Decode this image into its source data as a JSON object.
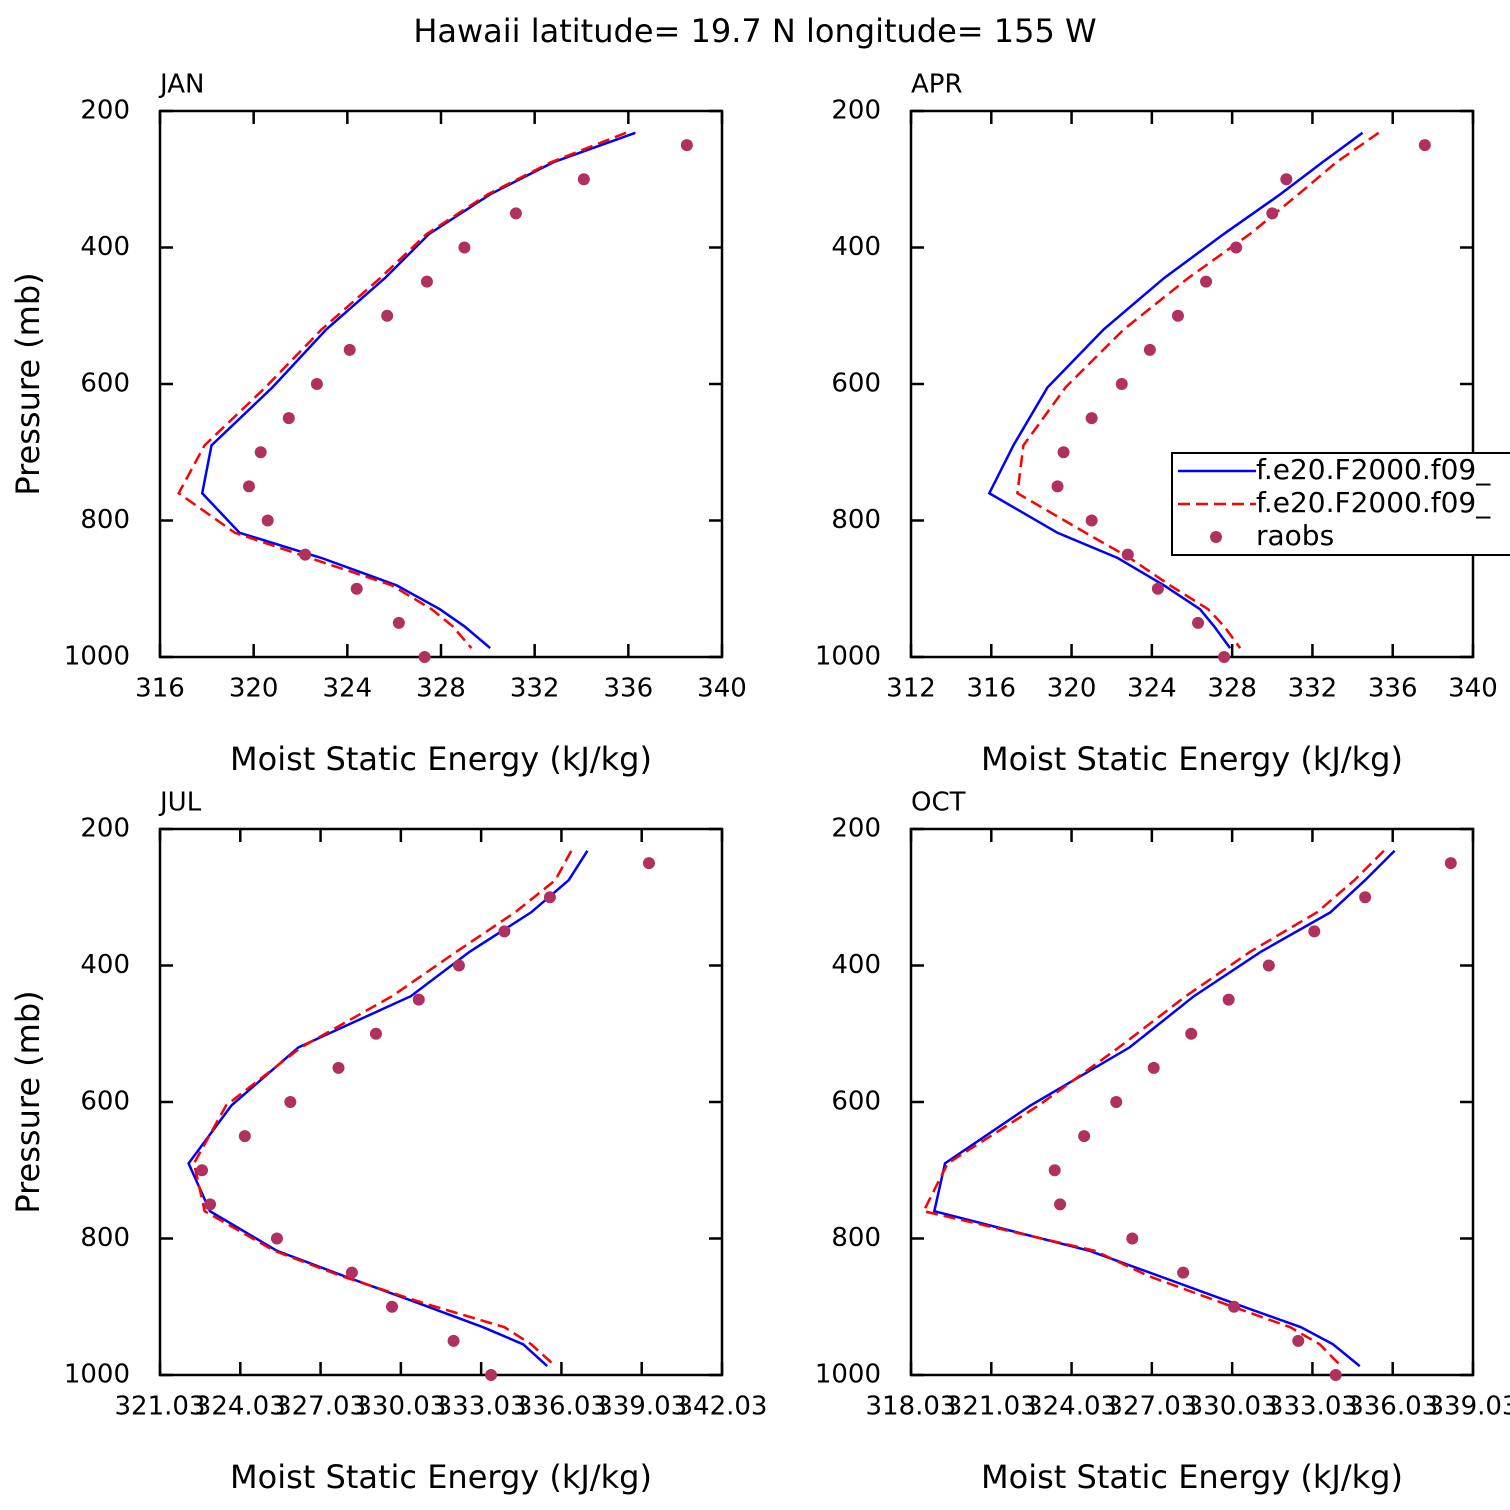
{
  "title": "Hawaii  latitude= 19.7 N longitude= 155 W",
  "chart_data": [
    {
      "type": "line",
      "subtitle": "JAN",
      "xlabel": "Moist Static Energy (kJ/kg)",
      "ylabel": "Pressure (mb)",
      "xlim": [
        316,
        340
      ],
      "xticks": [
        316,
        320,
        324,
        328,
        332,
        336,
        340
      ],
      "ylim": [
        1000,
        200
      ],
      "yticks": [
        200,
        400,
        600,
        800,
        1000
      ],
      "legend": false,
      "series": [
        {
          "name": "f.e20.F2000.f09_",
          "color": "#0000ff",
          "style": "solid",
          "y": [
            232,
            275,
            322,
            380,
            445,
            520,
            605,
            690,
            760,
            818,
            855,
            895,
            930,
            955,
            987
          ],
          "values": [
            336.3,
            332.8,
            330.1,
            327.5,
            325.6,
            323.1,
            320.8,
            318.2,
            317.8,
            319.4,
            322.9,
            326.1,
            327.95,
            329.0,
            330.1
          ]
        },
        {
          "name": "f.e20.F2000.f09_",
          "color": "#ff0000",
          "style": "dashed",
          "y": [
            232,
            275,
            322,
            380,
            445,
            520,
            605,
            690,
            760,
            818,
            855,
            895,
            930,
            955,
            987
          ],
          "values": [
            335.9,
            332.7,
            330.0,
            327.4,
            325.4,
            322.9,
            320.5,
            317.9,
            316.8,
            319.2,
            322.4,
            325.9,
            327.6,
            328.5,
            329.3
          ]
        },
        {
          "name": "raobs",
          "color": "#b03060",
          "style": "marker",
          "y": [
            250,
            300,
            350,
            400,
            450,
            500,
            550,
            600,
            650,
            700,
            750,
            800,
            850,
            900,
            950,
            1000
          ],
          "values": [
            338.5,
            334.1,
            331.2,
            329.0,
            327.4,
            325.7,
            324.1,
            322.7,
            321.5,
            320.3,
            319.8,
            320.6,
            322.2,
            324.4,
            326.2,
            327.3
          ]
        }
      ]
    },
    {
      "type": "line",
      "subtitle": "APR",
      "xlabel": "Moist Static Energy (kJ/kg)",
      "xlim": [
        312,
        340
      ],
      "xticks": [
        312,
        316,
        320,
        324,
        328,
        332,
        336,
        340
      ],
      "ylim": [
        1000,
        200
      ],
      "yticks": [
        200,
        400,
        600,
        800,
        1000
      ],
      "legend": true,
      "series": [
        {
          "name": "f.e20.F2000.f09_",
          "color": "#0000ff",
          "style": "solid",
          "y": [
            232,
            275,
            322,
            380,
            445,
            520,
            605,
            690,
            760,
            818,
            855,
            895,
            930,
            955,
            987
          ],
          "values": [
            334.5,
            332.5,
            330.4,
            327.6,
            324.6,
            321.6,
            318.8,
            317.1,
            315.9,
            319.3,
            322.3,
            324.6,
            326.4,
            327.1,
            327.9
          ]
        },
        {
          "name": "f.e20.F2000.f09_",
          "color": "#ff0000",
          "style": "dashed",
          "y": [
            232,
            275,
            322,
            380,
            445,
            520,
            605,
            690,
            760,
            818,
            855,
            895,
            930,
            955,
            987
          ],
          "values": [
            335.3,
            333.2,
            331.3,
            328.9,
            325.8,
            322.6,
            319.7,
            317.6,
            317.3,
            320.7,
            322.9,
            324.9,
            326.8,
            327.6,
            328.4
          ]
        },
        {
          "name": "raobs",
          "color": "#b03060",
          "style": "marker",
          "y": [
            250,
            300,
            350,
            400,
            450,
            500,
            550,
            600,
            650,
            700,
            750,
            800,
            850,
            900,
            950,
            1000
          ],
          "values": [
            337.6,
            330.7,
            330.0,
            328.2,
            326.7,
            325.3,
            323.9,
            322.5,
            321.0,
            319.6,
            319.3,
            321.0,
            322.8,
            324.3,
            326.3,
            327.6
          ]
        }
      ]
    },
    {
      "type": "line",
      "subtitle": "JUL",
      "xlabel": "Moist Static Energy (kJ/kg)",
      "ylabel": "Pressure (mb)",
      "xlim": [
        321.03,
        342.03
      ],
      "xticks": [
        321.03,
        324.03,
        327.03,
        330.03,
        333.03,
        336.03,
        339.03,
        342.03
      ],
      "ylim": [
        1000,
        200
      ],
      "yticks": [
        200,
        400,
        600,
        800,
        1000
      ],
      "legend": false,
      "series": [
        {
          "name": "f.e20.F2000.f09_",
          "color": "#0000ff",
          "style": "solid",
          "y": [
            232,
            275,
            322,
            380,
            445,
            520,
            605,
            690,
            760,
            818,
            855,
            895,
            930,
            955,
            987
          ],
          "values": [
            337.0,
            336.3,
            334.9,
            332.6,
            330.4,
            326.2,
            323.7,
            322.1,
            322.9,
            325.4,
            327.9,
            330.7,
            333.1,
            334.6,
            335.5
          ]
        },
        {
          "name": "f.e20.F2000.f09_",
          "color": "#ff0000",
          "style": "dashed",
          "y": [
            232,
            275,
            322,
            380,
            445,
            520,
            605,
            690,
            760,
            818,
            855,
            895,
            930,
            955,
            987
          ],
          "values": [
            336.4,
            335.8,
            334.3,
            332.1,
            329.7,
            326.3,
            323.5,
            322.3,
            322.7,
            325.3,
            327.8,
            330.9,
            333.9,
            334.9,
            335.8
          ]
        },
        {
          "name": "raobs",
          "color": "#b03060",
          "style": "marker",
          "y": [
            250,
            300,
            350,
            400,
            450,
            500,
            550,
            600,
            650,
            700,
            750,
            800,
            850,
            900,
            950,
            1000
          ],
          "values": [
            339.3,
            335.6,
            333.9,
            332.2,
            330.7,
            329.1,
            327.7,
            325.9,
            324.2,
            322.6,
            322.9,
            325.4,
            328.2,
            329.7,
            332.0,
            333.4
          ]
        }
      ]
    },
    {
      "type": "line",
      "subtitle": "OCT",
      "xlabel": "Moist Static Energy (kJ/kg)",
      "xlim": [
        318.03,
        339.03
      ],
      "xticks": [
        318.03,
        321.03,
        324.03,
        327.03,
        330.03,
        333.03,
        336.03,
        339.03
      ],
      "ylim": [
        1000,
        200
      ],
      "yticks": [
        200,
        400,
        600,
        800,
        1000
      ],
      "legend": false,
      "series": [
        {
          "name": "f.e20.F2000.f09_",
          "color": "#0000ff",
          "style": "solid",
          "y": [
            232,
            275,
            322,
            380,
            445,
            520,
            605,
            690,
            760,
            818,
            855,
            895,
            930,
            955,
            987
          ],
          "values": [
            336.1,
            335.0,
            333.7,
            331.1,
            328.6,
            326.2,
            322.5,
            319.3,
            318.9,
            324.7,
            327.3,
            330.1,
            332.6,
            333.8,
            334.8
          ]
        },
        {
          "name": "f.e20.F2000.f09_",
          "color": "#ff0000",
          "style": "dashed",
          "y": [
            232,
            275,
            322,
            380,
            445,
            520,
            605,
            690,
            760,
            818,
            855,
            895,
            930,
            955,
            987
          ],
          "values": [
            335.7,
            334.6,
            333.2,
            330.7,
            328.3,
            325.8,
            322.8,
            319.4,
            318.5,
            324.9,
            326.9,
            329.7,
            332.2,
            333.3,
            334.1
          ]
        },
        {
          "name": "raobs",
          "color": "#b03060",
          "style": "marker",
          "y": [
            250,
            300,
            350,
            400,
            450,
            500,
            550,
            600,
            650,
            700,
            750,
            800,
            850,
            900,
            950,
            1000
          ],
          "values": [
            338.2,
            335.0,
            333.1,
            331.4,
            329.9,
            328.5,
            327.1,
            325.7,
            324.5,
            323.4,
            323.6,
            326.3,
            328.2,
            330.1,
            332.5,
            333.9
          ]
        }
      ]
    }
  ]
}
